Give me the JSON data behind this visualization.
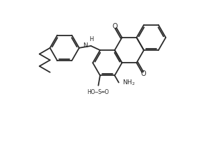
{
  "bg_color": "#ffffff",
  "line_color": "#2a2a2a",
  "lw": 1.3,
  "figsize": [
    2.92,
    2.04
  ],
  "dpi": 100,
  "xlim": [
    0,
    10
  ],
  "ylim": [
    0,
    7
  ],
  "bl": 0.72
}
